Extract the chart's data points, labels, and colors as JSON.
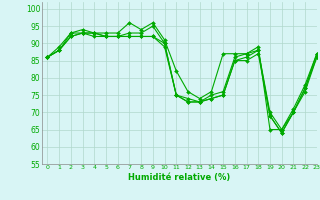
{
  "title": "",
  "xlabel": "Humidité relative (%)",
  "ylabel": "",
  "background_color": "#d8f5f5",
  "grid_color": "#b0d8cc",
  "line_color": "#00aa00",
  "xlim": [
    -0.5,
    23
  ],
  "ylim": [
    55,
    102
  ],
  "yticks": [
    55,
    60,
    65,
    70,
    75,
    80,
    85,
    90,
    95,
    100
  ],
  "xticks": [
    0,
    1,
    2,
    3,
    4,
    5,
    6,
    7,
    8,
    9,
    10,
    11,
    12,
    13,
    14,
    15,
    16,
    17,
    18,
    19,
    20,
    21,
    22,
    23
  ],
  "series": [
    [
      86,
      89,
      93,
      94,
      93,
      93,
      93,
      96,
      94,
      96,
      91,
      82,
      76,
      74,
      76,
      87,
      87,
      87,
      89,
      65,
      65,
      71,
      78,
      87
    ],
    [
      86,
      88,
      93,
      93,
      93,
      92,
      92,
      93,
      93,
      95,
      90,
      75,
      74,
      73,
      75,
      76,
      86,
      87,
      88,
      70,
      65,
      70,
      77,
      87
    ],
    [
      86,
      88,
      92,
      93,
      93,
      92,
      92,
      92,
      92,
      92,
      90,
      75,
      73,
      73,
      74,
      75,
      85,
      86,
      88,
      69,
      64,
      70,
      77,
      86
    ],
    [
      86,
      88,
      92,
      93,
      92,
      92,
      92,
      92,
      92,
      92,
      89,
      75,
      73,
      73,
      74,
      75,
      85,
      85,
      87,
      69,
      64,
      70,
      76,
      86
    ]
  ]
}
